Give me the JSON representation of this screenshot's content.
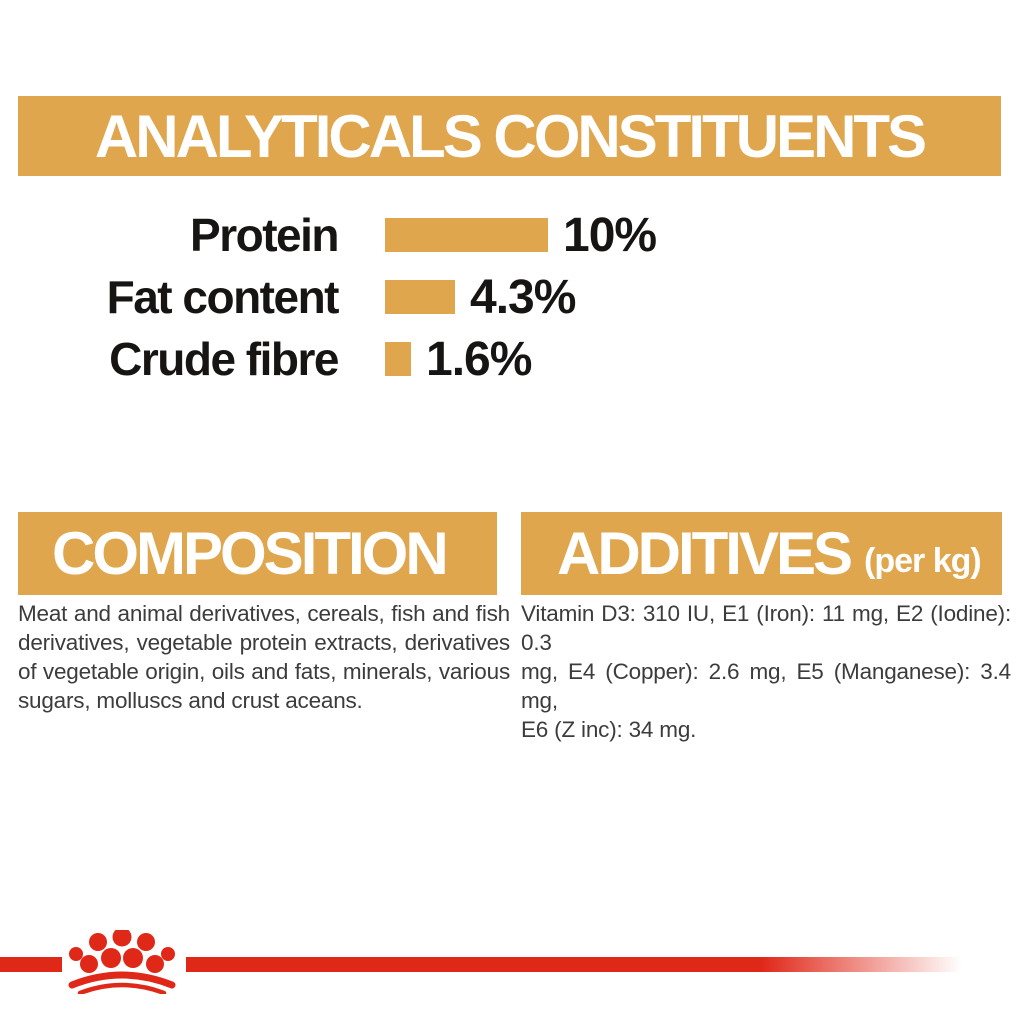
{
  "colors": {
    "background": "#FFFFFF",
    "gold": "#DFA64D",
    "red": "#E02819",
    "heading_text": "#FFFFFF",
    "label_text": "#161513",
    "body_text": "#3C3C3B"
  },
  "analyticals": {
    "title": "ANALYTICALS CONSTITUENTS"
  },
  "chart_data": {
    "type": "bar",
    "orientation": "horizontal",
    "title": "ANALYTICALS CONSTITUENTS",
    "categories": [
      "Protein",
      "Fat content",
      "Crude fibre"
    ],
    "values": [
      10,
      4.3,
      1.6
    ],
    "value_labels": [
      "10%",
      "4.3%",
      "1.6%"
    ],
    "unit": "percent",
    "xlim": [
      0,
      10
    ],
    "bar_color": "#DFA64D",
    "grid": false,
    "legend": "none"
  },
  "composition": {
    "title": "COMPOSITION",
    "lines": [
      "Meat and animal derivatives, cereals, fish and fish",
      "derivatives, vegetable protein extracts, derivatives",
      "of vegetable origin, oils and fats, minerals, various",
      "sugars, molluscs and crust aceans."
    ]
  },
  "additives": {
    "title": "ADDITIVES",
    "subtitle": "(per kg)",
    "lines": [
      "Vitamin D3: 310 IU, E1 (Iron): 11 mg, E2 (Iodine): 0.3",
      "mg, E4 (Copper): 2.6 mg, E5 (Manganese): 3.4 mg,",
      "E6 (Z inc): 34 mg."
    ]
  },
  "footer": {
    "brand_logo": "royal-canin-crown-icon"
  }
}
